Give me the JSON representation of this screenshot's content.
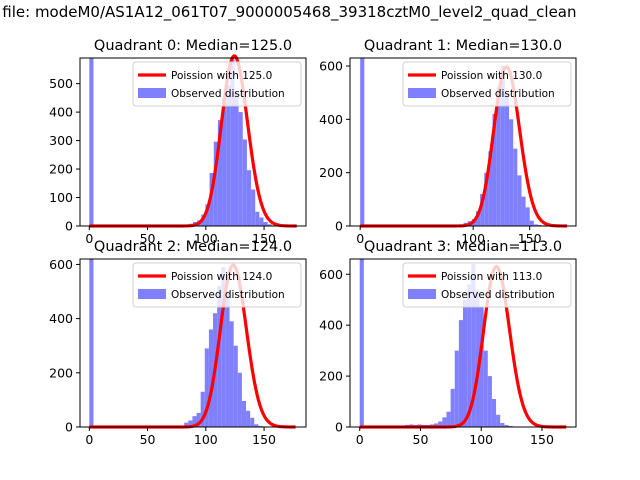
{
  "suptitle": "n file: modeM0/AS1A12_061T07_9000005468_39318cztM0_level2_quad_clean",
  "colors": {
    "poisson": "#ff0000",
    "observed": "#8080ff"
  },
  "chart_data": [
    {
      "type": "bar",
      "title": "Quadrant 0: Median=125.0",
      "legend_position": "upper-right",
      "poisson_label": "Poission with 125.0",
      "observed_label": "Observed distribution",
      "xlim": [
        -8,
        186
      ],
      "ylim": [
        0,
        590
      ],
      "xticks": [
        0,
        50,
        100,
        150
      ],
      "yticks": [
        0,
        100,
        200,
        300,
        400,
        500
      ],
      "poisson_lambda": 125.0,
      "poisson_scale": 597,
      "poisson_x_range": [
        0,
        178
      ],
      "bin_edges": [
        0,
        178
      ],
      "n_bins": 50,
      "observed_values": [
        590,
        0,
        0,
        0,
        0,
        0,
        0,
        0,
        0,
        0,
        0,
        0,
        0,
        0,
        0,
        0,
        0,
        0,
        0,
        0,
        0,
        0,
        0,
        0,
        8,
        14,
        20,
        40,
        76,
        186,
        296,
        372,
        448,
        496,
        586,
        470,
        400,
        304,
        196,
        128,
        50,
        30,
        14,
        6,
        2,
        2,
        0,
        0,
        0,
        0
      ]
    },
    {
      "type": "bar",
      "title": "Quadrant 1: Median=130.0",
      "legend_position": "upper-right",
      "poisson_label": "Poission with 130.0",
      "observed_label": "Observed distribution",
      "xlim": [
        -9,
        191
      ],
      "ylim": [
        0,
        630
      ],
      "xticks": [
        0,
        100,
        150
      ],
      "yticks": [
        0,
        200,
        400,
        600
      ],
      "poisson_lambda": 130.0,
      "poisson_scale": 597,
      "poisson_x_range": [
        0,
        183
      ],
      "bin_edges": [
        0,
        183
      ],
      "n_bins": 50,
      "observed_values": [
        630,
        0,
        0,
        0,
        0,
        0,
        0,
        0,
        0,
        0,
        0,
        0,
        0,
        0,
        0,
        0,
        0,
        0,
        0,
        0,
        0,
        0,
        0,
        0,
        0,
        12,
        18,
        26,
        56,
        120,
        200,
        280,
        420,
        520,
        600,
        500,
        400,
        290,
        190,
        110,
        70,
        20,
        6,
        4,
        2,
        0,
        0,
        0,
        0,
        0
      ]
    },
    {
      "type": "bar",
      "title": "Quadrant 2: Median=124.0",
      "legend_position": "upper-right",
      "poisson_label": "Poission with 124.0",
      "observed_label": "Observed distribution",
      "xlim": [
        -8,
        186
      ],
      "ylim": [
        0,
        620
      ],
      "xticks": [
        0,
        50,
        100,
        150
      ],
      "yticks": [
        0,
        200,
        400,
        600
      ],
      "poisson_lambda": 124.0,
      "poisson_scale": 597,
      "poisson_x_range": [
        0,
        177
      ],
      "bin_edges": [
        0,
        177
      ],
      "n_bins": 50,
      "observed_values": [
        620,
        0,
        0,
        0,
        0,
        0,
        0,
        0,
        0,
        0,
        0,
        0,
        0,
        0,
        0,
        0,
        0,
        0,
        0,
        0,
        0,
        0,
        0,
        16,
        24,
        40,
        52,
        130,
        290,
        360,
        420,
        520,
        590,
        500,
        390,
        300,
        200,
        96,
        60,
        34,
        10,
        4,
        2,
        2,
        0,
        0,
        0,
        0,
        0,
        0
      ]
    },
    {
      "type": "bar",
      "title": "Quadrant 3: Median=113.0",
      "legend_position": "upper-right",
      "poisson_label": "Poission with 113.0",
      "observed_label": "Observed distribution",
      "xlim": [
        -8,
        178
      ],
      "ylim": [
        0,
        660
      ],
      "xticks": [
        0,
        50,
        100,
        150
      ],
      "yticks": [
        0,
        200,
        400,
        600
      ],
      "poisson_lambda": 113.0,
      "poisson_scale": 630,
      "poisson_x_range": [
        0,
        170
      ],
      "bin_edges": [
        0,
        170
      ],
      "n_bins": 50,
      "observed_values": [
        660,
        0,
        0,
        0,
        0,
        0,
        0,
        0,
        0,
        0,
        0,
        8,
        10,
        8,
        10,
        8,
        8,
        10,
        14,
        22,
        38,
        60,
        150,
        300,
        420,
        500,
        560,
        640,
        540,
        470,
        300,
        200,
        110,
        48,
        16,
        8,
        4,
        2,
        2,
        0,
        0,
        0,
        0,
        0,
        0,
        0,
        0,
        0,
        0,
        0
      ]
    }
  ]
}
